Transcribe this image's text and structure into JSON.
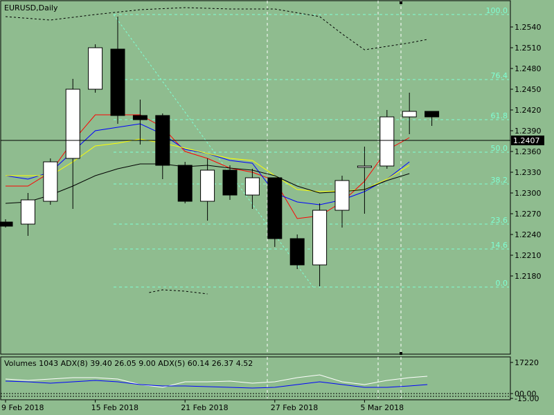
{
  "window": {
    "symbol_label": "EURUSD,Daily"
  },
  "indicator": {
    "label": "Volumes 1043 ADX(8) 39.40 26.05 9.00 ADX(5) 60.14 26.37 4.52"
  },
  "colors": {
    "background": "#8fbc8f",
    "bull_candle": "#ffffff",
    "bear_candle": "#000000",
    "fib": "#7fffd4",
    "ma_red": "#ff0000",
    "ma_blue": "#0000ff",
    "ma_yellow": "#ffff00",
    "ma_black": "#000000",
    "price_tag_bg": "#000000"
  },
  "chart_data": {
    "type": "candlestick",
    "title": "EURUSD,Daily",
    "ylim": [
      1.2155,
      1.2575
    ],
    "y_ticks": [
      "1.2540",
      "1.2510",
      "1.2480",
      "1.2450",
      "1.2420",
      "1.2390",
      "1.2360",
      "1.2330",
      "1.2300",
      "1.2270",
      "1.2240",
      "1.2210",
      "1.2180"
    ],
    "x_ticks": [
      "9 Feb 2018",
      "15 Feb 2018",
      "21 Feb 2018",
      "27 Feb 2018",
      "5 Mar 2018"
    ],
    "current_price": "1.2407",
    "candles": [
      {
        "o": 1.2258,
        "h": 1.2262,
        "l": 1.225,
        "c": 1.2252
      },
      {
        "o": 1.2255,
        "h": 1.23,
        "l": 1.2238,
        "c": 1.229
      },
      {
        "o": 1.2288,
        "h": 1.235,
        "l": 1.2283,
        "c": 1.2345
      },
      {
        "o": 1.235,
        "h": 1.2465,
        "l": 1.2277,
        "c": 1.245
      },
      {
        "o": 1.245,
        "h": 1.2515,
        "l": 1.2445,
        "c": 1.251
      },
      {
        "o": 1.2508,
        "h": 1.2555,
        "l": 1.24,
        "c": 1.2412
      },
      {
        "o": 1.2412,
        "h": 1.2435,
        "l": 1.237,
        "c": 1.2406
      },
      {
        "o": 1.2412,
        "h": 1.2415,
        "l": 1.232,
        "c": 1.234
      },
      {
        "o": 1.234,
        "h": 1.2345,
        "l": 1.2285,
        "c": 1.2288
      },
      {
        "o": 1.2288,
        "h": 1.235,
        "l": 1.226,
        "c": 1.2333
      },
      {
        "o": 1.2333,
        "h": 1.234,
        "l": 1.229,
        "c": 1.2297
      },
      {
        "o": 1.2297,
        "h": 1.2335,
        "l": 1.2277,
        "c": 1.2322
      },
      {
        "o": 1.2322,
        "h": 1.2322,
        "l": 1.2222,
        "c": 1.2234
      },
      {
        "o": 1.2234,
        "h": 1.224,
        "l": 1.219,
        "c": 1.2196
      },
      {
        "o": 1.2196,
        "h": 1.2285,
        "l": 1.2165,
        "c": 1.2275
      },
      {
        "o": 1.2275,
        "h": 1.2325,
        "l": 1.225,
        "c": 1.2318
      },
      {
        "o": 1.2337,
        "h": 1.2367,
        "l": 1.227,
        "c": 1.2339
      },
      {
        "o": 1.2339,
        "h": 1.242,
        "l": 1.2335,
        "c": 1.241
      },
      {
        "o": 1.241,
        "h": 1.2445,
        "l": 1.2385,
        "c": 1.2418
      },
      {
        "o": 1.2418,
        "h": 1.2418,
        "l": 1.2397,
        "c": 1.241
      }
    ],
    "moving_averages": [
      {
        "color": "#ff0000",
        "values": [
          1.231,
          1.231,
          1.233,
          1.2375,
          1.2413,
          1.2413,
          1.2413,
          1.2395,
          1.236,
          1.235,
          1.2336,
          1.233,
          1.2318,
          1.2263,
          1.2267,
          1.2287,
          1.2317,
          1.2362,
          1.238,
          null
        ]
      },
      {
        "color": "#0000ff",
        "values": [
          1.2325,
          1.232,
          1.233,
          1.236,
          1.239,
          1.2395,
          1.24,
          1.2385,
          1.2363,
          1.2357,
          1.2347,
          1.2343,
          1.23,
          1.2287,
          1.2283,
          1.229,
          1.2302,
          1.232,
          1.2345,
          null
        ]
      },
      {
        "color": "#ffff00",
        "values": [
          1.2325,
          1.2325,
          1.2325,
          1.2345,
          1.2368,
          1.2372,
          1.2378,
          1.2372,
          1.2365,
          1.2357,
          1.235,
          1.2347,
          1.2325,
          1.2305,
          1.2302,
          1.2303,
          1.2305,
          1.232,
          1.234,
          null
        ]
      },
      {
        "color": "#000000",
        "values": [
          1.2285,
          1.2287,
          1.2297,
          1.231,
          1.2325,
          1.2335,
          1.2342,
          1.2342,
          1.2338,
          1.234,
          1.2336,
          1.2333,
          1.2325,
          1.231,
          1.23,
          1.2302,
          1.2305,
          1.2318,
          1.2328,
          null
        ]
      }
    ],
    "fibonacci_levels": [
      {
        "label": "100.0",
        "price": 1.2558
      },
      {
        "label": "76.4",
        "price": 1.2464
      },
      {
        "label": "61.8",
        "price": 1.2406
      },
      {
        "label": "50.0",
        "price": 1.2359
      },
      {
        "label": "38.2",
        "price": 1.2313
      },
      {
        "label": "23.6",
        "price": 1.2255
      },
      {
        "label": "14.6",
        "price": 1.2219
      },
      {
        "label": "0.0",
        "price": 1.2164
      }
    ],
    "indicator_panel": {
      "y_ticks": [
        "17220",
        "00.00",
        "-15.00"
      ]
    }
  }
}
